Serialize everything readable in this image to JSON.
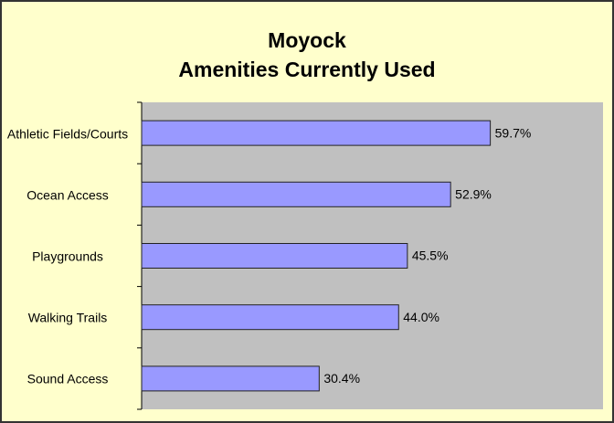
{
  "chart_data": {
    "type": "hbar",
    "title": [
      "Moyock",
      "Amenities Currently Used"
    ],
    "categories": [
      "Athletic Fields/Courts",
      "Ocean Access",
      "Playgrounds",
      "Walking Trails",
      "Sound Access"
    ],
    "values": [
      59.7,
      52.9,
      45.5,
      44.0,
      30.4
    ],
    "value_labels": [
      "59.7%",
      "52.9%",
      "45.5%",
      "44.0%",
      "30.4%"
    ],
    "color": "#9999ff",
    "xlim": [
      0,
      79
    ]
  }
}
